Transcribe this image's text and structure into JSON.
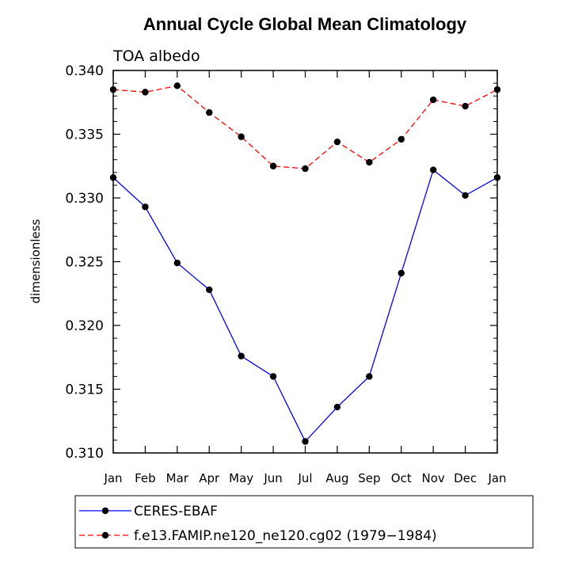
{
  "chart_data": {
    "type": "line",
    "title": "Annual Cycle Global Mean Climatology",
    "subtitle": "TOA albedo",
    "ylabel": "dimensionless",
    "xlabel": "",
    "categories": [
      "Jan",
      "Feb",
      "Mar",
      "Apr",
      "May",
      "Jun",
      "Jul",
      "Aug",
      "Sep",
      "Oct",
      "Nov",
      "Dec",
      "Jan"
    ],
    "ylim": [
      0.31,
      0.34
    ],
    "yticks": [
      0.31,
      0.315,
      0.32,
      0.325,
      0.33,
      0.335,
      0.34
    ],
    "ytick_labels": [
      "0.310",
      "0.315",
      "0.320",
      "0.325",
      "0.330",
      "0.335",
      "0.340"
    ],
    "series": [
      {
        "name": "CERES-EBAF",
        "color": "#0000ff",
        "dash": "solid",
        "values": [
          0.3316,
          0.3293,
          0.3249,
          0.3228,
          0.3176,
          0.316,
          0.3109,
          0.3136,
          0.316,
          0.3241,
          0.3322,
          0.3302,
          0.3316
        ]
      },
      {
        "name": "f.e13.FAMIP.ne120_ne120.cg02 (1979−1984)",
        "color": "#ff0000",
        "dash": "dashed",
        "values": [
          0.3385,
          0.3383,
          0.3388,
          0.3367,
          0.3348,
          0.3325,
          0.3323,
          0.3344,
          0.3328,
          0.3346,
          0.3377,
          0.3372,
          0.3385
        ]
      }
    ],
    "marker_color": "#000000",
    "legend_position": "bottom-left"
  }
}
